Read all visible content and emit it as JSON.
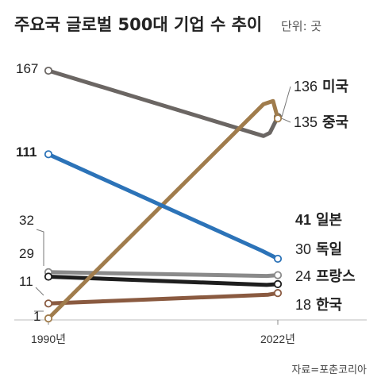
{
  "chart_data": {
    "type": "line",
    "title": "주요국 글로벌 500대 기업 수 추이",
    "unit_label": "단위: 곳",
    "source": "자료=포춘코리아",
    "x": [
      "1990년",
      "2022년"
    ],
    "ylim": [
      0,
      170
    ],
    "grid": false,
    "series": [
      {
        "id": "usa",
        "name": "미국",
        "start": 167,
        "end": 136,
        "start_label": "167",
        "end_label": "136",
        "color": "#6b6663",
        "label_color": "#222222",
        "bold_start": false,
        "bold_end": false
      },
      {
        "id": "china",
        "name": "중국",
        "start": 1,
        "end": 135,
        "start_label": "1",
        "end_label": "135",
        "color": "#a07c4c",
        "label_color": "#222222",
        "bold_start": false,
        "bold_end": false
      },
      {
        "id": "japan",
        "name": "일본",
        "start": 111,
        "end": 41,
        "start_label": "111",
        "end_label": "41",
        "color": "#2c73b8",
        "label_color": "#2c73b8",
        "bold_start": true,
        "bold_end": true
      },
      {
        "id": "germany",
        "name": "독일",
        "start": 32,
        "end": 30,
        "start_label": "32",
        "end_label": "30",
        "color": "#8a8a8a",
        "label_color": "#222222",
        "bold_start": false,
        "bold_end": false
      },
      {
        "id": "france",
        "name": "프랑스",
        "start": 29,
        "end": 24,
        "start_label": "29",
        "end_label": "24",
        "color": "#1e1e1e",
        "label_color": "#222222",
        "bold_start": false,
        "bold_end": false
      },
      {
        "id": "korea",
        "name": "한국",
        "start": 11,
        "end": 18,
        "start_label": "11",
        "end_label": "18",
        "color": "#8a5a40",
        "label_color": "#222222",
        "bold_start": false,
        "bold_end": false
      }
    ]
  }
}
